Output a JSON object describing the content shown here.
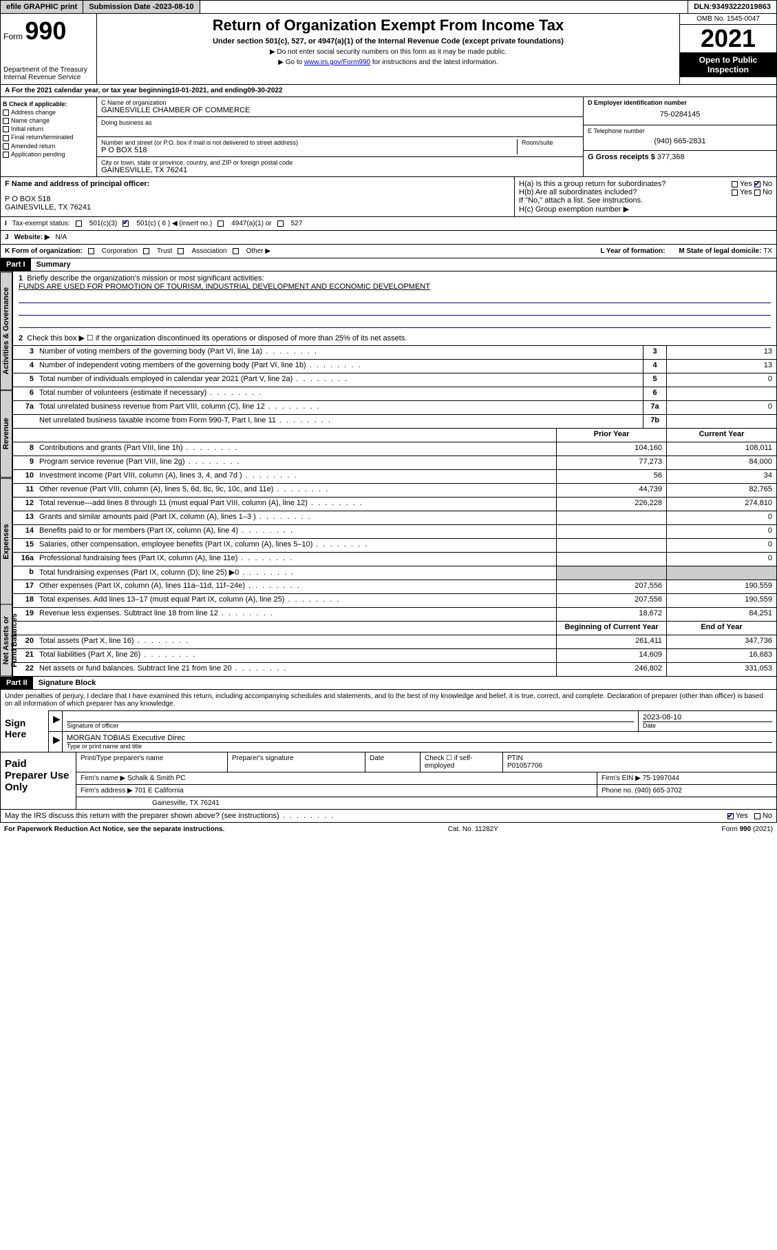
{
  "topbar": {
    "efile": "efile GRAPHIC print",
    "submission_label": "Submission Date - ",
    "submission_date": "2023-08-10",
    "dln_label": "DLN: ",
    "dln": "93493222019863"
  },
  "header": {
    "form_prefix": "Form",
    "form_no": "990",
    "dept": "Department of the Treasury",
    "irs": "Internal Revenue Service",
    "title": "Return of Organization Exempt From Income Tax",
    "sub": "Under section 501(c), 527, or 4947(a)(1) of the Internal Revenue Code (except private foundations)",
    "note1": "▶ Do not enter social security numbers on this form as it may be made public.",
    "note2_pre": "▶ Go to ",
    "note2_link": "www.irs.gov/Form990",
    "note2_post": " for instructions and the latest information.",
    "omb": "OMB No. 1545-0047",
    "year": "2021",
    "open": "Open to Public Inspection"
  },
  "line_a": {
    "text_pre": "For the 2021 calendar year, or tax year beginning ",
    "begin": "10-01-2021",
    "mid": " , and ending ",
    "end": "09-30-2022"
  },
  "col_b": {
    "label": "B Check if applicable:",
    "items": [
      "Address change",
      "Name change",
      "Initial return",
      "Final return/terminated",
      "Amended return",
      "Application pending"
    ]
  },
  "col_c": {
    "name_label": "C Name of organization",
    "name": "GAINESVILLE CHAMBER OF COMMERCE",
    "dba_label": "Doing business as",
    "addr_label": "Number and street (or P.O. box if mail is not delivered to street address)",
    "room_label": "Room/suite",
    "addr": "P O BOX 518",
    "city_label": "City or town, state or province, country, and ZIP or foreign postal code",
    "city": "GAINESVILLE, TX  76241"
  },
  "col_d": {
    "ein_label": "D Employer identification number",
    "ein": "75-0284145",
    "phone_label": "E Telephone number",
    "phone": "(940) 665-2831",
    "gross_label": "G Gross receipts $ ",
    "gross": "377,368"
  },
  "row_f": {
    "label": "F Name and address of principal officer:",
    "addr1": "P O BOX 518",
    "addr2": "GAINESVILLE, TX  76241"
  },
  "row_h": {
    "ha": "H(a)  Is this a group return for subordinates?",
    "hb": "H(b)  Are all subordinates included?",
    "hnote": "If \"No,\" attach a list. See instructions.",
    "hc": "H(c)  Group exemption number ▶",
    "yes": "Yes",
    "no": "No"
  },
  "row_i": {
    "label": "Tax-exempt status:",
    "o1": "501(c)(3)",
    "o2": "501(c) ( 6 ) ◀ (insert no.)",
    "o3": "4947(a)(1) or",
    "o4": "527"
  },
  "row_j": {
    "label": "Website: ▶",
    "val": "N/A"
  },
  "row_k": {
    "label": "K Form of organization:",
    "opts": [
      "Corporation",
      "Trust",
      "Association",
      "Other ▶"
    ],
    "l_label": "L Year of formation:",
    "m_label": "M State of legal domicile: ",
    "m_val": "TX"
  },
  "part1": {
    "hdr": "Part I",
    "title": "Summary",
    "l1": "Briefly describe the organization's mission or most significant activities:",
    "mission": "FUNDS ARE USED FOR PROMOTION OF TOURISM, INDUSTRIAL DEVELOPMENT AND ECONOMIC DEVELOPMENT",
    "l2": "Check this box ▶ ☐  if the organization discontinued its operations or disposed of more than 25% of its net assets.",
    "tabs": {
      "gov": "Activities & Governance",
      "rev": "Revenue",
      "exp": "Expenses",
      "net": "Net Assets or Fund Balances"
    },
    "rows_gov": [
      {
        "n": "3",
        "d": "Number of voting members of the governing body (Part VI, line 1a)",
        "b": "3",
        "v": "13"
      },
      {
        "n": "4",
        "d": "Number of independent voting members of the governing body (Part VI, line 1b)",
        "b": "4",
        "v": "13"
      },
      {
        "n": "5",
        "d": "Total number of individuals employed in calendar year 2021 (Part V, line 2a)",
        "b": "5",
        "v": "0"
      },
      {
        "n": "6",
        "d": "Total number of volunteers (estimate if necessary)",
        "b": "6",
        "v": ""
      },
      {
        "n": "7a",
        "d": "Total unrelated business revenue from Part VIII, column (C), line 12",
        "b": "7a",
        "v": "0"
      },
      {
        "n": "",
        "d": "Net unrelated business taxable income from Form 990-T, Part I, line 11",
        "b": "7b",
        "v": ""
      }
    ],
    "col_hdr": {
      "prior": "Prior Year",
      "current": "Current Year",
      "beg": "Beginning of Current Year",
      "end": "End of Year"
    },
    "rows_rev": [
      {
        "n": "8",
        "d": "Contributions and grants (Part VIII, line 1h)",
        "p": "104,160",
        "c": "108,011"
      },
      {
        "n": "9",
        "d": "Program service revenue (Part VIII, line 2g)",
        "p": "77,273",
        "c": "84,000"
      },
      {
        "n": "10",
        "d": "Investment income (Part VIII, column (A), lines 3, 4, and 7d )",
        "p": "56",
        "c": "34"
      },
      {
        "n": "11",
        "d": "Other revenue (Part VIII, column (A), lines 5, 6d, 8c, 9c, 10c, and 11e)",
        "p": "44,739",
        "c": "82,765"
      },
      {
        "n": "12",
        "d": "Total revenue—add lines 8 through 11 (must equal Part VIII, column (A), line 12)",
        "p": "226,228",
        "c": "274,810"
      }
    ],
    "rows_exp": [
      {
        "n": "13",
        "d": "Grants and similar amounts paid (Part IX, column (A), lines 1–3 )",
        "p": "",
        "c": "0"
      },
      {
        "n": "14",
        "d": "Benefits paid to or for members (Part IX, column (A), line 4)",
        "p": "",
        "c": "0"
      },
      {
        "n": "15",
        "d": "Salaries, other compensation, employee benefits (Part IX, column (A), lines 5–10)",
        "p": "",
        "c": "0"
      },
      {
        "n": "16a",
        "d": "Professional fundraising fees (Part IX, column (A), line 11e)",
        "p": "",
        "c": "0"
      },
      {
        "n": "b",
        "d": "Total fundraising expenses (Part IX, column (D), line 25) ▶0",
        "p": "SHADE",
        "c": "SHADE"
      },
      {
        "n": "17",
        "d": "Other expenses (Part IX, column (A), lines 11a–11d, 11f–24e)",
        "p": "207,556",
        "c": "190,559"
      },
      {
        "n": "18",
        "d": "Total expenses. Add lines 13–17 (must equal Part IX, column (A), line 25)",
        "p": "207,556",
        "c": "190,559"
      },
      {
        "n": "19",
        "d": "Revenue less expenses. Subtract line 18 from line 12",
        "p": "18,672",
        "c": "84,251"
      }
    ],
    "rows_net": [
      {
        "n": "20",
        "d": "Total assets (Part X, line 16)",
        "p": "261,411",
        "c": "347,736"
      },
      {
        "n": "21",
        "d": "Total liabilities (Part X, line 26)",
        "p": "14,609",
        "c": "16,683"
      },
      {
        "n": "22",
        "d": "Net assets or fund balances. Subtract line 21 from line 20",
        "p": "246,802",
        "c": "331,053"
      }
    ]
  },
  "part2": {
    "hdr": "Part II",
    "title": "Signature Block",
    "decl": "Under penalties of perjury, I declare that I have examined this return, including accompanying schedules and statements, and to the best of my knowledge and belief, it is true, correct, and complete. Declaration of preparer (other than officer) is based on all information of which preparer has any knowledge.",
    "sign_here": "Sign Here",
    "sig_officer": "Signature of officer",
    "sig_date": "2023-08-10",
    "date_lbl": "Date",
    "officer_name": "MORGAN TOBIAS Executive Direc",
    "type_lbl": "Type or print name and title"
  },
  "prep": {
    "hdr": "Paid Preparer Use Only",
    "r1": {
      "c1": "Print/Type preparer's name",
      "c2": "Preparer's signature",
      "c3": "Date",
      "c4_pre": "Check ☐ if self-employed",
      "c5_lbl": "PTIN",
      "c5": "P01057706"
    },
    "r2": {
      "lbl": "Firm's name   ▶ ",
      "val": "Schalk & Smith PC",
      "ein_lbl": "Firm's EIN ▶ ",
      "ein": "75-1997044"
    },
    "r3": {
      "lbl": "Firm's address ▶ ",
      "val": "701 E California",
      "ph_lbl": "Phone no. ",
      "ph": "(940) 665-3702"
    },
    "r4": "Gainesville, TX  76241"
  },
  "discuss": {
    "q": "May the IRS discuss this return with the preparer shown above? (see instructions)",
    "yes": "Yes",
    "no": "No"
  },
  "footer": {
    "left": "For Paperwork Reduction Act Notice, see the separate instructions.",
    "mid": "Cat. No. 11282Y",
    "right_pre": "Form ",
    "right_b": "990",
    "right_post": " (2021)"
  }
}
